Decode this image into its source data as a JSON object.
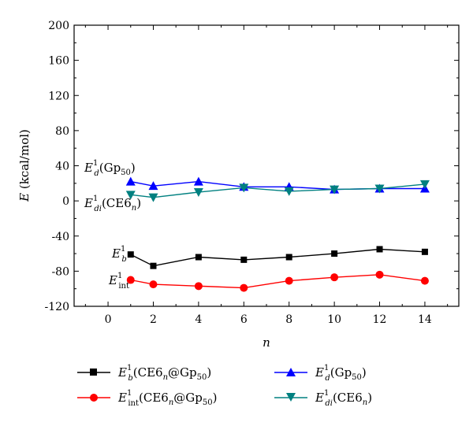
{
  "chart_data": {
    "type": "line",
    "xlabel": "n",
    "ylabel": "E (kcal/mol)",
    "xlim": [
      -1.5,
      15.5
    ],
    "ylim": [
      -120,
      200
    ],
    "xticks": [
      "0",
      "2",
      "4",
      "6",
      "8",
      "10",
      "12",
      "14"
    ],
    "yticks": [
      "-120",
      "-80",
      "-40",
      "0",
      "40",
      "80",
      "120",
      "160",
      "200"
    ],
    "grid": false,
    "legend_position": "bottom",
    "x": [
      1,
      2,
      4,
      6,
      8,
      10,
      12,
      14
    ],
    "series": [
      {
        "name": "E_b^1(CE6n@Gp50)",
        "color": "#000000",
        "marker": "square",
        "values": [
          -61,
          -74,
          -64,
          -67,
          -64,
          -60,
          -55,
          -58
        ]
      },
      {
        "name": "E_int^1(CE6n@Gp50)",
        "color": "#ff0000",
        "marker": "circle",
        "values": [
          -90,
          -95,
          -97,
          -99,
          -91,
          -87,
          -84,
          -91
        ]
      },
      {
        "name": "E_d^1(Gp50)",
        "color": "#0000ff",
        "marker": "triangle-up",
        "values": [
          22,
          17,
          22,
          16,
          16,
          13,
          14,
          14
        ]
      },
      {
        "name": "E_di^1(CE6n)",
        "color": "#008080",
        "marker": "triangle-down",
        "values": [
          7,
          4,
          10,
          15,
          11,
          13,
          14,
          19
        ]
      }
    ],
    "annotations": [
      {
        "id": "ed",
        "series": 2
      },
      {
        "id": "edi",
        "series": 3
      },
      {
        "id": "eb",
        "series": 0
      },
      {
        "id": "eint",
        "series": 1
      }
    ]
  },
  "labels": {
    "E": "E",
    "sup": "1",
    "sub_b": "b",
    "sub_int": "int",
    "sub_d": "d",
    "sub_di": "di",
    "sub_n": "n",
    "sub_50": "50",
    "ce6n_gp50_pre": "(CE6",
    "ce6n_gp50_post": "@Gp",
    "close": ")",
    "gp_pre": "(Gp",
    "ce6_pre": "(CE6",
    "ylabel_var": "E",
    "ylabel_unit": " (kcal/mol)",
    "xlabel": "n"
  }
}
